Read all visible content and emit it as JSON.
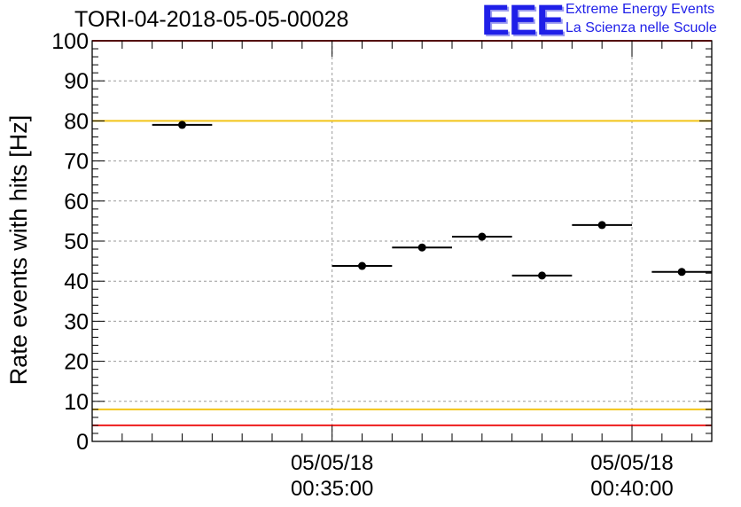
{
  "title": "TORI-04-2018-05-05-00028",
  "logo": {
    "mark": "EEE",
    "line1": "Extreme Energy Events",
    "line2": "La Scienza nelle Scuole"
  },
  "chart_data": {
    "type": "scatter",
    "ylabel": "Rate events with hits [Hz]",
    "ylim": [
      0,
      100
    ],
    "yticks": [
      0,
      10,
      20,
      30,
      40,
      50,
      60,
      70,
      80,
      90,
      100
    ],
    "xlim_minutes": [
      31.0,
      41.33
    ],
    "xticks": [
      {
        "t": 35,
        "label": [
          "05/05/18",
          "00:35:00"
        ]
      },
      {
        "t": 40,
        "label": [
          "05/05/18",
          "00:40:00"
        ]
      }
    ],
    "grid": true,
    "points": [
      {
        "t_start": 32.0,
        "t_end": 33.0,
        "y": 79.0
      },
      {
        "t_start": 35.0,
        "t_end": 36.0,
        "y": 43.8
      },
      {
        "t_start": 36.0,
        "t_end": 37.0,
        "y": 48.4
      },
      {
        "t_start": 37.0,
        "t_end": 38.0,
        "y": 51.1
      },
      {
        "t_start": 38.0,
        "t_end": 39.0,
        "y": 41.4
      },
      {
        "t_start": 39.0,
        "t_end": 40.0,
        "y": 54.0
      },
      {
        "t_start": 40.33,
        "t_end": 41.33,
        "y": 42.3
      }
    ],
    "reference_lines": [
      {
        "y": 100,
        "color": "#ee1c1c"
      },
      {
        "y": 80,
        "color": "#f2c418"
      },
      {
        "y": 8,
        "color": "#f2c418"
      },
      {
        "y": 4,
        "color": "#ee1c1c"
      }
    ]
  }
}
